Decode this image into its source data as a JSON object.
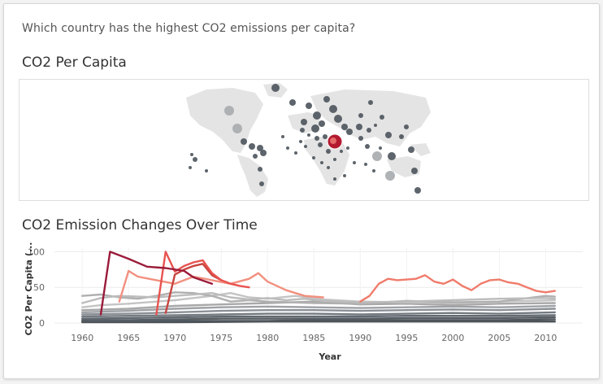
{
  "question": "Which country has the highest CO2 emissions per capita?",
  "map_section": {
    "title": "CO2 Per Capita"
  },
  "line_section": {
    "title": "CO2 Emission Changes Over Time"
  },
  "colors": {
    "land": "#e4e4e4",
    "dot": "#4f575e",
    "dot_light": "#a9adb0",
    "highlight": "#b3192f",
    "gray_line": "#b8b8b8",
    "dark_line": "#505860"
  },
  "chart_data": {
    "type": "line",
    "xlabel": "Year",
    "ylabel": "CO2 Per Capita (...",
    "xlim": [
      1957,
      2014
    ],
    "ylim": [
      0,
      105
    ],
    "x_ticks": [
      1960,
      1965,
      1970,
      1975,
      1980,
      1985,
      1990,
      1995,
      2000,
      2005,
      2010
    ],
    "y_ticks": [
      0,
      50,
      100
    ],
    "series": [
      {
        "color": "#f07b6b",
        "points": [
          [
            1990,
            30
          ],
          [
            1991,
            38
          ],
          [
            1992,
            55
          ],
          [
            1993,
            62
          ],
          [
            1994,
            60
          ],
          [
            1995,
            61
          ],
          [
            1996,
            62
          ],
          [
            1997,
            67
          ],
          [
            1998,
            58
          ],
          [
            1999,
            55
          ],
          [
            2000,
            61
          ],
          [
            2001,
            52
          ],
          [
            2002,
            46
          ],
          [
            2003,
            55
          ],
          [
            2004,
            60
          ],
          [
            2005,
            61
          ],
          [
            2006,
            57
          ],
          [
            2007,
            55
          ],
          [
            2008,
            50
          ],
          [
            2009,
            45
          ],
          [
            2010,
            43
          ],
          [
            2011,
            45
          ]
        ]
      },
      {
        "color": "#9b1b3a",
        "points": [
          [
            1962,
            12
          ],
          [
            1963,
            100
          ],
          [
            1965,
            90
          ],
          [
            1967,
            79
          ],
          [
            1969,
            77
          ],
          [
            1971,
            73
          ],
          [
            1972,
            64
          ],
          [
            1974,
            55
          ]
        ]
      },
      {
        "color": "#e8534f",
        "points": [
          [
            1968,
            12
          ],
          [
            1969,
            100
          ],
          [
            1970,
            72
          ],
          [
            1971,
            80
          ],
          [
            1972,
            85
          ],
          [
            1973,
            88
          ],
          [
            1974,
            70
          ],
          [
            1975,
            60
          ],
          [
            1976,
            55
          ],
          [
            1977,
            52
          ],
          [
            1978,
            50
          ]
        ]
      },
      {
        "color": "#c8453f",
        "points": [
          [
            1969,
            14
          ],
          [
            1970,
            68
          ],
          [
            1971,
            75
          ],
          [
            1972,
            80
          ],
          [
            1973,
            83
          ],
          [
            1974,
            67
          ],
          [
            1975,
            60
          ]
        ]
      },
      {
        "color": "#f28f7f",
        "points": [
          [
            1964,
            30
          ],
          [
            1965,
            73
          ],
          [
            1966,
            65
          ],
          [
            1968,
            60
          ],
          [
            1970,
            55
          ],
          [
            1972,
            65
          ],
          [
            1974,
            60
          ],
          [
            1976,
            55
          ],
          [
            1978,
            62
          ],
          [
            1979,
            70
          ],
          [
            1980,
            58
          ],
          [
            1982,
            46
          ],
          [
            1984,
            38
          ],
          [
            1986,
            36
          ]
        ]
      },
      {
        "color": "#bcbcbc",
        "points": [
          [
            1960,
            28
          ],
          [
            1962,
            35
          ],
          [
            1964,
            38
          ],
          [
            1966,
            37
          ],
          [
            1968,
            36
          ],
          [
            1970,
            38
          ],
          [
            1972,
            40
          ],
          [
            1974,
            42
          ],
          [
            1976,
            36
          ],
          [
            1978,
            33
          ],
          [
            1980,
            35
          ],
          [
            1982,
            32
          ],
          [
            1984,
            34
          ],
          [
            1986,
            31
          ],
          [
            1988,
            30
          ],
          [
            1990,
            29
          ],
          [
            1995,
            30
          ],
          [
            2000,
            32
          ],
          [
            2005,
            34
          ],
          [
            2010,
            35
          ],
          [
            2011,
            34
          ]
        ]
      },
      {
        "color": "#b0b0b0",
        "points": [
          [
            1960,
            38
          ],
          [
            1962,
            40
          ],
          [
            1964,
            36
          ],
          [
            1966,
            34
          ],
          [
            1968,
            38
          ],
          [
            1970,
            43
          ],
          [
            1972,
            42
          ],
          [
            1974,
            38
          ],
          [
            1976,
            30
          ],
          [
            1978,
            32
          ],
          [
            1980,
            30
          ],
          [
            1985,
            28
          ],
          [
            1990,
            27
          ],
          [
            1995,
            31
          ],
          [
            2000,
            29
          ],
          [
            2005,
            30
          ],
          [
            2010,
            38
          ],
          [
            2011,
            37
          ]
        ]
      },
      {
        "color": "#c4c4c4",
        "points": [
          [
            1960,
            22
          ],
          [
            1962,
            25
          ],
          [
            1965,
            27
          ],
          [
            1968,
            30
          ],
          [
            1970,
            32
          ],
          [
            1972,
            35
          ],
          [
            1974,
            38
          ],
          [
            1976,
            42
          ],
          [
            1978,
            36
          ],
          [
            1980,
            34
          ],
          [
            1983,
            38
          ],
          [
            1986,
            33
          ],
          [
            1990,
            30
          ],
          [
            1995,
            29
          ],
          [
            2000,
            28
          ],
          [
            2005,
            30
          ],
          [
            2011,
            32
          ]
        ]
      },
      {
        "color": "#a8a8a8",
        "points": [
          [
            1960,
            18
          ],
          [
            1965,
            20
          ],
          [
            1970,
            24
          ],
          [
            1975,
            26
          ],
          [
            1980,
            28
          ],
          [
            1985,
            30
          ],
          [
            1990,
            26
          ],
          [
            1995,
            27
          ],
          [
            2000,
            25
          ],
          [
            2005,
            27
          ],
          [
            2011,
            28
          ]
        ]
      },
      {
        "color": "#9ea2a6",
        "points": [
          [
            1960,
            15
          ],
          [
            1965,
            17
          ],
          [
            1970,
            20
          ],
          [
            1975,
            22
          ],
          [
            1980,
            23
          ],
          [
            1985,
            22
          ],
          [
            1990,
            21
          ],
          [
            1995,
            22
          ],
          [
            2000,
            23
          ],
          [
            2005,
            22
          ],
          [
            2011,
            24
          ]
        ]
      },
      {
        "color": "#8a9096",
        "points": [
          [
            1960,
            12
          ],
          [
            1965,
            13
          ],
          [
            1970,
            15
          ],
          [
            1975,
            17
          ],
          [
            1980,
            18
          ],
          [
            1985,
            18
          ],
          [
            1990,
            17
          ],
          [
            1995,
            18
          ],
          [
            2000,
            19
          ],
          [
            2005,
            18
          ],
          [
            2011,
            20
          ]
        ]
      },
      {
        "color": "#737a80",
        "points": [
          [
            1960,
            9
          ],
          [
            1965,
            10
          ],
          [
            1970,
            11
          ],
          [
            1975,
            12
          ],
          [
            1980,
            13
          ],
          [
            1985,
            13
          ],
          [
            1990,
            12
          ],
          [
            1995,
            13
          ],
          [
            2000,
            14
          ],
          [
            2005,
            13
          ],
          [
            2011,
            15
          ]
        ]
      },
      {
        "color": "#626970",
        "points": [
          [
            1960,
            6
          ],
          [
            1965,
            7
          ],
          [
            1970,
            8
          ],
          [
            1975,
            9
          ],
          [
            1980,
            9
          ],
          [
            1985,
            9
          ],
          [
            1990,
            9
          ],
          [
            1995,
            10
          ],
          [
            2000,
            10
          ],
          [
            2005,
            10
          ],
          [
            2011,
            11
          ]
        ]
      },
      {
        "color": "#575e64",
        "points": [
          [
            1960,
            4
          ],
          [
            1965,
            4
          ],
          [
            1970,
            5
          ],
          [
            1975,
            6
          ],
          [
            1980,
            6
          ],
          [
            1985,
            6
          ],
          [
            1990,
            6
          ],
          [
            1995,
            7
          ],
          [
            2000,
            7
          ],
          [
            2005,
            7
          ],
          [
            2011,
            8
          ]
        ]
      },
      {
        "color": "#4f565c",
        "points": [
          [
            1960,
            2
          ],
          [
            1965,
            2
          ],
          [
            1970,
            3
          ],
          [
            1975,
            3
          ],
          [
            1980,
            3
          ],
          [
            1985,
            4
          ],
          [
            1990,
            4
          ],
          [
            1995,
            4
          ],
          [
            2000,
            4
          ],
          [
            2005,
            4
          ],
          [
            2011,
            5
          ]
        ]
      },
      {
        "color": "#4a5157",
        "points": [
          [
            1960,
            1
          ],
          [
            1970,
            1
          ],
          [
            1980,
            2
          ],
          [
            1990,
            2
          ],
          [
            2000,
            2
          ],
          [
            2011,
            2
          ]
        ]
      }
    ]
  }
}
